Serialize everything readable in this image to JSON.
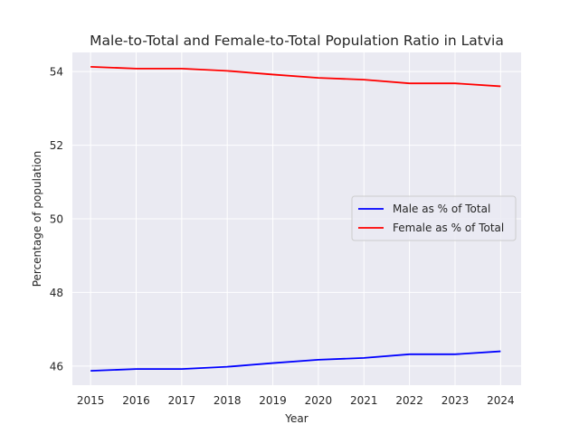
{
  "chart_data": {
    "type": "line",
    "title": "Male-to-Total and Female-to-Total Population Ratio in Latvia",
    "xlabel": "Year",
    "ylabel": "Percentage of population",
    "x": [
      2015,
      2016,
      2017,
      2018,
      2019,
      2020,
      2021,
      2022,
      2023,
      2024
    ],
    "xlim": [
      2014.6,
      2024.45
    ],
    "ylim": [
      45.48,
      54.52
    ],
    "xticks": [
      2015,
      2016,
      2017,
      2018,
      2019,
      2020,
      2021,
      2022,
      2023,
      2024
    ],
    "yticks": [
      46,
      48,
      50,
      52,
      54
    ],
    "grid": true,
    "legend_position": "center-right",
    "background": "#eaeaf2",
    "series": [
      {
        "name": "Male as % of Total",
        "color": "#0000ff",
        "values": [
          45.87,
          45.92,
          45.92,
          45.98,
          46.08,
          46.17,
          46.22,
          46.32,
          46.32,
          46.4
        ]
      },
      {
        "name": "Female as % of Total",
        "color": "#ff0000",
        "values": [
          54.13,
          54.08,
          54.08,
          54.02,
          53.92,
          53.83,
          53.78,
          53.68,
          53.68,
          53.6
        ]
      }
    ]
  }
}
